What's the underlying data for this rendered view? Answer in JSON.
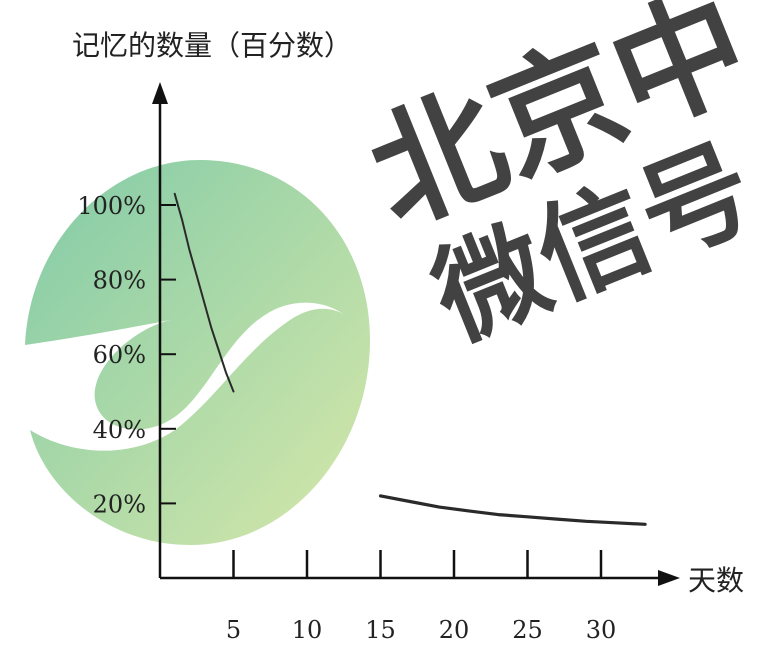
{
  "chart_data": {
    "type": "line",
    "title": "",
    "ylabel": "记忆的数量（百分数）",
    "xlabel": "天数",
    "x_ticks": [
      5,
      10,
      15,
      20,
      25,
      30
    ],
    "y_ticks": [
      "20%",
      "40%",
      "60%",
      "80%",
      "100%"
    ],
    "y_tick_values": [
      20,
      40,
      60,
      80,
      100
    ],
    "xlim": [
      0,
      35
    ],
    "ylim": [
      0,
      115
    ],
    "grid": false,
    "series": [
      {
        "segments": [
          {
            "x": [
              1,
              1.5,
              2,
              2.5,
              3,
              3.5,
              4,
              4.5,
              5
            ],
            "y": [
              103,
              96,
              88,
              81,
              74,
              67,
              61,
              55,
              50
            ]
          },
          {
            "x": [
              15,
              17,
              19,
              21,
              23,
              25,
              27,
              29,
              31,
              33
            ],
            "y": [
              22,
              20.5,
              19,
              18,
              17,
              16.4,
              15.8,
              15.2,
              14.8,
              14.4
            ]
          }
        ]
      }
    ],
    "colors": {
      "line": "#2a2a2a",
      "axis": "#111111"
    }
  },
  "watermark": {
    "line1": "北京中",
    "line2": "微信号",
    "color": "#2fb87a",
    "logo_colors": [
      "#58b98a",
      "#c9e08d"
    ]
  }
}
